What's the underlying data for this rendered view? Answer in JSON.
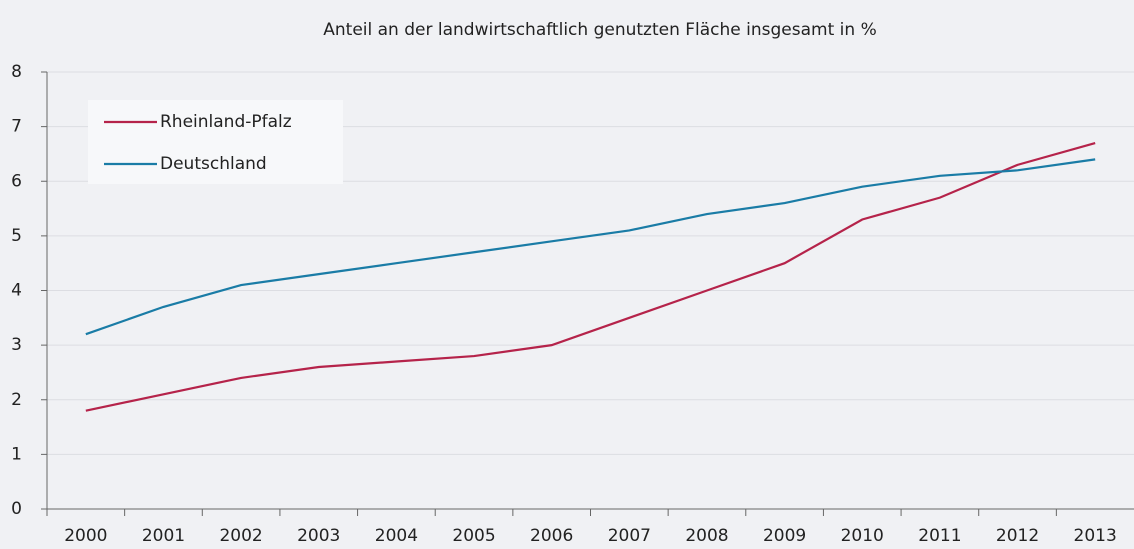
{
  "chart_data": {
    "type": "line",
    "title": "Anteil  an der landwirtschaftlich genutzten Fläche  insgesamt in %",
    "categories": [
      "2000",
      "2001",
      "2002",
      "2003",
      "2004",
      "2005",
      "2006",
      "2007",
      "2008",
      "2009",
      "2010",
      "2011",
      "2012",
      "2013"
    ],
    "series": [
      {
        "name": "Rheinland-Pfalz",
        "color": "#b5234a",
        "values": [
          1.8,
          2.1,
          2.4,
          2.6,
          2.7,
          2.8,
          3.0,
          3.5,
          4.0,
          4.5,
          5.3,
          5.7,
          6.3,
          6.7
        ]
      },
      {
        "name": "Deutschland",
        "color": "#1a7ca6",
        "values": [
          3.2,
          3.7,
          4.1,
          4.3,
          4.5,
          4.7,
          4.9,
          5.1,
          5.4,
          5.6,
          5.9,
          6.1,
          6.2,
          6.4
        ]
      }
    ],
    "ylim": [
      0,
      8
    ],
    "yticks": [
      0,
      1,
      2,
      3,
      4,
      5,
      6,
      7,
      8
    ],
    "grid": true,
    "legend": "upper left"
  }
}
